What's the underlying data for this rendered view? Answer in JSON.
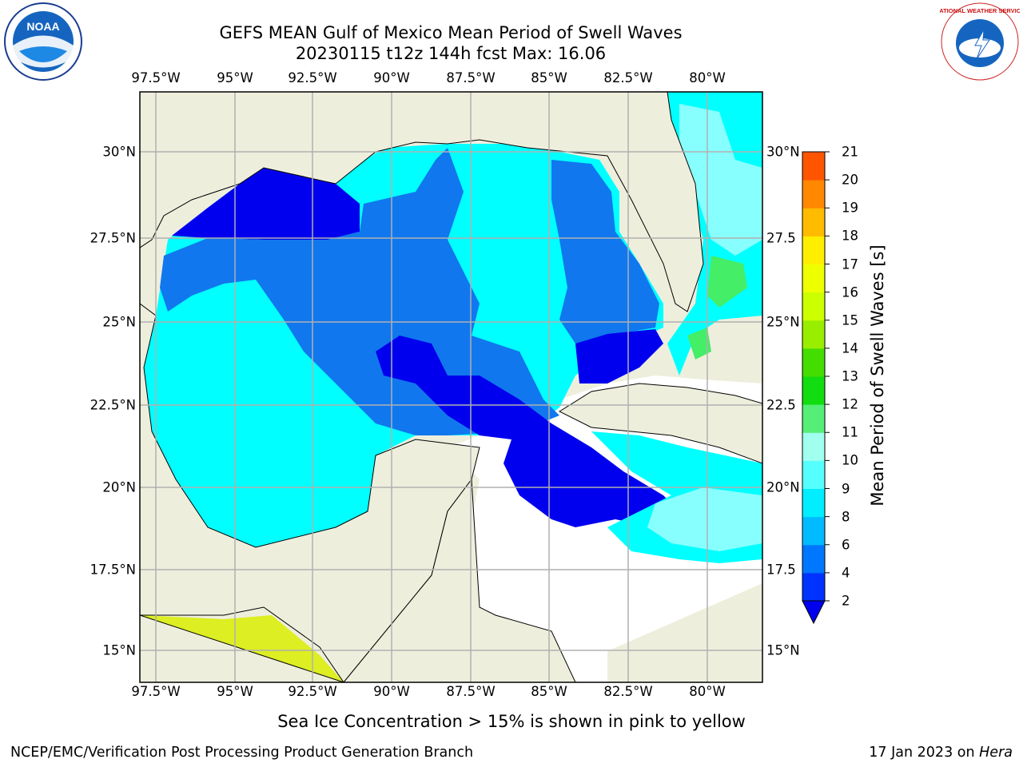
{
  "header": {
    "title_line1": "GEFS MEAN Gulf of Mexico Mean Period of Swell Waves",
    "title_line2": "20230115 t12z 144h fcst   Max: 16.06"
  },
  "axes": {
    "lon_labels": [
      "97.5°W",
      "95°W",
      "92.5°W",
      "90°W",
      "87.5°W",
      "85°W",
      "82.5°W",
      "80°W"
    ],
    "lat_labels_left": [
      "30°N",
      "27.5°N",
      "25°N",
      "22.5°N",
      "20°N",
      "17.5°N",
      "15°N"
    ],
    "lat_labels_right": [
      "30°N",
      "27.5",
      "25°N",
      "22.5",
      "20°N",
      "17.5",
      "15°N"
    ]
  },
  "colorbar": {
    "label": "Mean Period of Swell Waves [s]",
    "ticks": [
      "2",
      "4",
      "6",
      "8",
      "9",
      "10",
      "11",
      "12",
      "13",
      "14",
      "15",
      "16",
      "17",
      "18",
      "19",
      "20",
      "21"
    ],
    "colors": [
      "#0033ff",
      "#0077ff",
      "#00bbff",
      "#00eeff",
      "#55ffff",
      "#a0ffee",
      "#55ee77",
      "#11dd11",
      "#44dd00",
      "#99ee00",
      "#ccff00",
      "#eeff00",
      "#ffee00",
      "#ffbb00",
      "#ff8800",
      "#ff5500",
      "#ff2200",
      "#ff0000"
    ],
    "extend_color": "#0000ee"
  },
  "map_colors": {
    "land": "#eeeedd",
    "ocean_no_data": "#ffffff",
    "period_2": "#0000ee",
    "period_4": "#1177ee",
    "period_6": "#00ffff",
    "period_8": "#88ffff",
    "period_9": "#44ee66",
    "ice_yellow": "#ddee22",
    "grid": "#b0b0b0"
  },
  "logos": {
    "left_text": "NOAA",
    "right_text": "NATIONAL WEATHER SERVICE"
  },
  "notes": {
    "sea_ice": "Sea Ice Concentration > 15% is shown in pink to yellow"
  },
  "footer": {
    "left": "NCEP/EMC/Verification Post Processing Product Generation Branch",
    "right_prefix": "17 Jan 2023 on ",
    "right_machine": "Hera"
  }
}
